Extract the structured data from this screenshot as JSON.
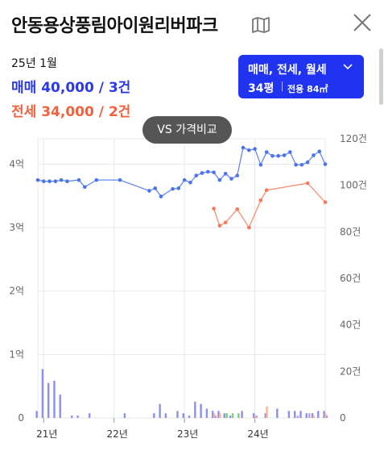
{
  "header": {
    "title": "안동용상풍림아이원리버파크"
  },
  "info": {
    "period": "25년 1월",
    "trade": "매매 40,000 / 3건",
    "jeonse": "전세 34,000 / 2건"
  },
  "filter": {
    "type_label": "매매, 전세, 월세",
    "area_main": "34평",
    "area_sub": "전용 84㎡"
  },
  "compare_button": "VS 가격비교",
  "chart_data": {
    "type": "line",
    "title": "",
    "x_start": "2020-12",
    "x_end": "2025-01",
    "x_ticks": [
      {
        "date": "2021-01",
        "label": "21년"
      },
      {
        "date": "2022-01",
        "label": "22년"
      },
      {
        "date": "2023-01",
        "label": "23년"
      },
      {
        "date": "2024-01",
        "label": "24년"
      }
    ],
    "y_left": {
      "min": 0,
      "max": 4.4,
      "ticks": [
        {
          "v": 0,
          "label": "0"
        },
        {
          "v": 1,
          "label": "1억"
        },
        {
          "v": 2,
          "label": "2억"
        },
        {
          "v": 3,
          "label": "3억"
        },
        {
          "v": 4,
          "label": "4억"
        }
      ]
    },
    "y_right": {
      "min": 0,
      "max": 120,
      "ticks": [
        {
          "v": 0,
          "label": "0"
        },
        {
          "v": 20,
          "label": "20건"
        },
        {
          "v": 40,
          "label": "40건"
        },
        {
          "v": 60,
          "label": "60건"
        },
        {
          "v": 80,
          "label": "80건"
        },
        {
          "v": 100,
          "label": "100건"
        },
        {
          "v": 120,
          "label": "120건"
        }
      ]
    },
    "colors": {
      "trade": "#4a74e8",
      "jeonse": "#f47a5a",
      "bar_trade": "#8b8ff0",
      "bar_jeonse": "#f8b59a",
      "bar_monthly": "#7bd17b",
      "bar_other": "#c79ad8",
      "grid": "#e8e8e8"
    },
    "series": [
      {
        "key": "trade",
        "points": [
          [
            "2020-12",
            3.75
          ],
          [
            "2021-01",
            3.73
          ],
          [
            "2021-02",
            3.73
          ],
          [
            "2021-03",
            3.73
          ],
          [
            "2021-04",
            3.75
          ],
          [
            "2021-05",
            3.73
          ],
          [
            "2021-07",
            3.75
          ],
          [
            "2021-08",
            3.64
          ],
          [
            "2021-10",
            3.75
          ],
          [
            "2022-02",
            3.75
          ],
          [
            "2022-07",
            3.58
          ],
          [
            "2022-08",
            3.62
          ],
          [
            "2022-09",
            3.49
          ],
          [
            "2022-11",
            3.61
          ],
          [
            "2022-12",
            3.62
          ],
          [
            "2023-01",
            3.75
          ],
          [
            "2023-02",
            3.71
          ],
          [
            "2023-03",
            3.82
          ],
          [
            "2023-04",
            3.86
          ],
          [
            "2023-05",
            3.88
          ],
          [
            "2023-06",
            3.87
          ],
          [
            "2023-07",
            3.75
          ],
          [
            "2023-08",
            3.85
          ],
          [
            "2023-09",
            3.77
          ],
          [
            "2023-10",
            3.82
          ],
          [
            "2023-11",
            4.26
          ],
          [
            "2023-12",
            4.22
          ],
          [
            "2024-01",
            4.24
          ],
          [
            "2024-02",
            3.99
          ],
          [
            "2024-03",
            4.19
          ],
          [
            "2024-04",
            4.13
          ],
          [
            "2024-05",
            4.13
          ],
          [
            "2024-06",
            4.14
          ],
          [
            "2024-07",
            4.19
          ],
          [
            "2024-08",
            3.99
          ],
          [
            "2024-09",
            3.99
          ],
          [
            "2024-10",
            4.03
          ],
          [
            "2024-11",
            4.14
          ],
          [
            "2024-12",
            4.2
          ],
          [
            "2025-01",
            4.0
          ]
        ]
      },
      {
        "key": "jeonse",
        "points": [
          [
            "2023-06",
            3.3
          ],
          [
            "2023-07",
            3.03
          ],
          [
            "2023-08",
            3.08
          ],
          [
            "2023-10",
            3.29
          ],
          [
            "2023-12",
            3.0
          ],
          [
            "2024-02",
            3.43
          ],
          [
            "2024-03",
            3.59
          ],
          [
            "2024-10",
            3.7
          ],
          [
            "2025-01",
            3.4
          ]
        ]
      }
    ],
    "volume": {
      "trade": [
        [
          "2020-12",
          3
        ],
        [
          "2021-01",
          21
        ],
        [
          "2021-02",
          15
        ],
        [
          "2021-03",
          16
        ],
        [
          "2021-04",
          10
        ],
        [
          "2021-06",
          1
        ],
        [
          "2021-07",
          1
        ],
        [
          "2021-09",
          2
        ],
        [
          "2022-03",
          2
        ],
        [
          "2022-08",
          2
        ],
        [
          "2022-09",
          6
        ],
        [
          "2022-10",
          2
        ],
        [
          "2022-12",
          3
        ],
        [
          "2023-01",
          2
        ],
        [
          "2023-02",
          1
        ],
        [
          "2023-03",
          7
        ],
        [
          "2023-04",
          6
        ],
        [
          "2023-05",
          4
        ],
        [
          "2023-06",
          3
        ],
        [
          "2023-07",
          3
        ],
        [
          "2023-08",
          2
        ],
        [
          "2023-09",
          1
        ],
        [
          "2023-11",
          3
        ],
        [
          "2024-01",
          2
        ],
        [
          "2024-03",
          2
        ],
        [
          "2024-05",
          4
        ],
        [
          "2024-07",
          3
        ],
        [
          "2024-08",
          3
        ],
        [
          "2024-09",
          3
        ],
        [
          "2024-10",
          2
        ],
        [
          "2024-11",
          2
        ],
        [
          "2024-12",
          3
        ],
        [
          "2025-01",
          3
        ]
      ],
      "jeonse": [
        [
          "2023-06",
          2
        ],
        [
          "2023-07",
          2
        ],
        [
          "2024-01",
          1
        ],
        [
          "2024-03",
          5
        ],
        [
          "2024-11",
          1
        ],
        [
          "2025-01",
          2
        ]
      ],
      "monthly": [
        [
          "2023-08",
          2
        ],
        [
          "2023-09",
          2
        ],
        [
          "2023-10",
          2
        ]
      ],
      "other": [
        [
          "2023-06",
          1
        ],
        [
          "2024-01",
          1
        ],
        [
          "2024-08",
          1
        ],
        [
          "2024-10",
          2
        ],
        [
          "2025-01",
          1
        ]
      ]
    }
  }
}
